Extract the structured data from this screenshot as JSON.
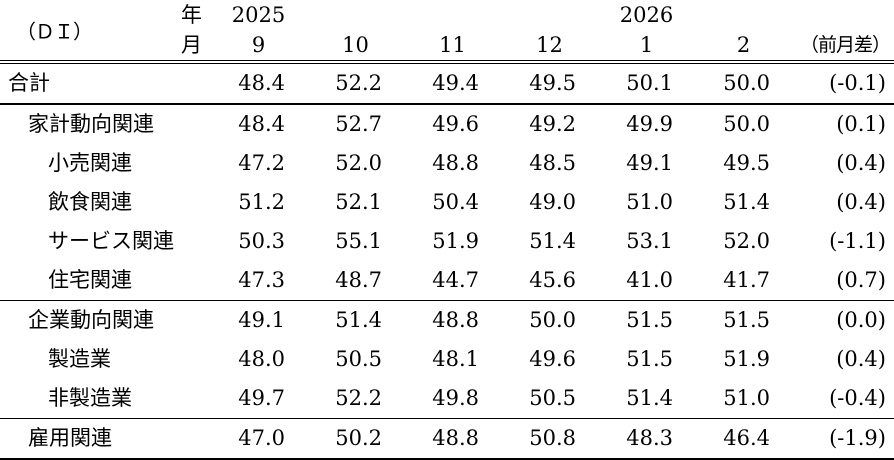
{
  "colors": {
    "background": "#ffffff",
    "text": "#000000",
    "rule": "#000000"
  },
  "table": {
    "unit_label": "（ＤＩ）",
    "header": {
      "year_label": "年",
      "month_label": "月",
      "years": [
        "2025",
        "2026"
      ],
      "months": [
        "9",
        "10",
        "11",
        "12",
        "1",
        "2"
      ],
      "diff_label": "（前月差）"
    },
    "rows": [
      {
        "label": "合計",
        "indent": 0,
        "values": [
          "48.4",
          "52.2",
          "49.4",
          "49.5",
          "50.1",
          "50.0"
        ],
        "diff": "(-0.1)",
        "divider_after": "strong"
      },
      {
        "label": "家計動向関連",
        "indent": 1,
        "values": [
          "48.4",
          "52.7",
          "49.6",
          "49.2",
          "49.9",
          "50.0"
        ],
        "diff": "(0.1)",
        "divider_after": "none"
      },
      {
        "label": "小売関連",
        "indent": 2,
        "values": [
          "47.2",
          "52.0",
          "48.8",
          "48.5",
          "49.1",
          "49.5"
        ],
        "diff": "(0.4)",
        "divider_after": "none"
      },
      {
        "label": "飲食関連",
        "indent": 2,
        "values": [
          "51.2",
          "52.1",
          "50.4",
          "49.0",
          "51.0",
          "51.4"
        ],
        "diff": "(0.4)",
        "divider_after": "none"
      },
      {
        "label": "サービス関連",
        "indent": 2,
        "values": [
          "50.3",
          "55.1",
          "51.9",
          "51.4",
          "53.1",
          "52.0"
        ],
        "diff": "(-1.1)",
        "divider_after": "none"
      },
      {
        "label": "住宅関連",
        "indent": 2,
        "values": [
          "47.3",
          "48.7",
          "44.7",
          "45.6",
          "41.0",
          "41.7"
        ],
        "diff": "(0.7)",
        "divider_after": "line"
      },
      {
        "label": "企業動向関連",
        "indent": 1,
        "values": [
          "49.1",
          "51.4",
          "48.8",
          "50.0",
          "51.5",
          "51.5"
        ],
        "diff": "(0.0)",
        "divider_after": "none"
      },
      {
        "label": "製造業",
        "indent": 2,
        "values": [
          "48.0",
          "50.5",
          "48.1",
          "49.6",
          "51.5",
          "51.9"
        ],
        "diff": "(0.4)",
        "divider_after": "none"
      },
      {
        "label": "非製造業",
        "indent": 2,
        "values": [
          "49.7",
          "52.2",
          "49.8",
          "50.5",
          "51.4",
          "51.0"
        ],
        "diff": "(-0.4)",
        "divider_after": "line"
      },
      {
        "label": "雇用関連",
        "indent": 1,
        "values": [
          "47.0",
          "50.2",
          "48.8",
          "50.8",
          "48.3",
          "46.4"
        ],
        "diff": "(-1.9)",
        "divider_after": "none"
      }
    ]
  }
}
